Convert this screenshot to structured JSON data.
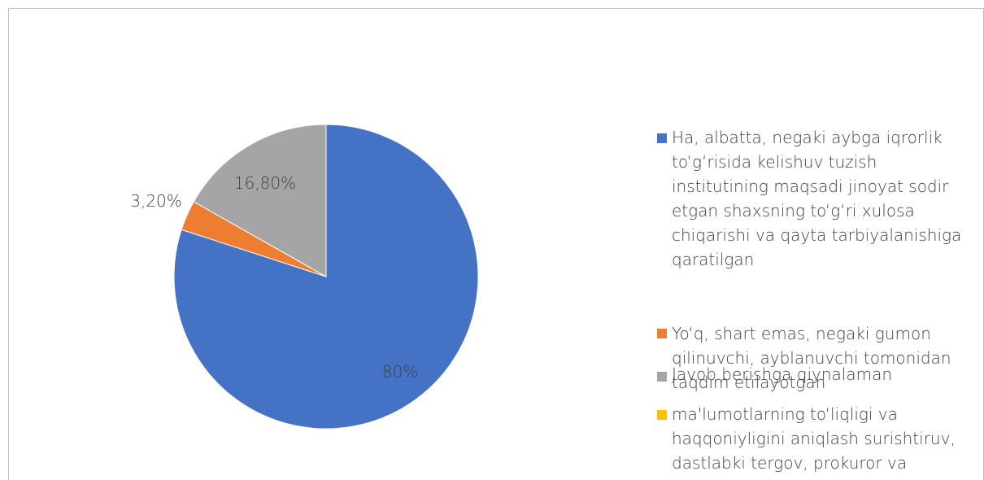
{
  "chart_data": {
    "type": "pie",
    "slices": [
      {
        "label": "Ha, albatta, negaki aybga iqrorlik to‘g‘risida kelishuv tuzish institutining maqsadi jinoyat sodir etgan shaxsning to‘g‘ri xulosa chiqarishi va qayta tarbiyalanishiga qaratilgan",
        "value": 80,
        "display": "80%",
        "color": "#4472c4"
      },
      {
        "label": "Yo‘q, shart emas, negaki gumon qilinuvchi, ayblanuvchi tomonidan taqdim etilayotgan",
        "value": 3.2,
        "display": "3,20%",
        "color": "#ed7d31"
      },
      {
        "label": "Javob berishga qiynalaman",
        "value": 16.8,
        "display": "16,80%",
        "color": "#a5a5a5"
      },
      {
        "label": "ma'lumotlarning to‘liqligi va haqqoniyligini aniqlash surishtiruv, dastlabki tergov, prokuror va",
        "value": 0,
        "display": "",
        "color": "#ffc000"
      }
    ],
    "legend_position": "right"
  }
}
